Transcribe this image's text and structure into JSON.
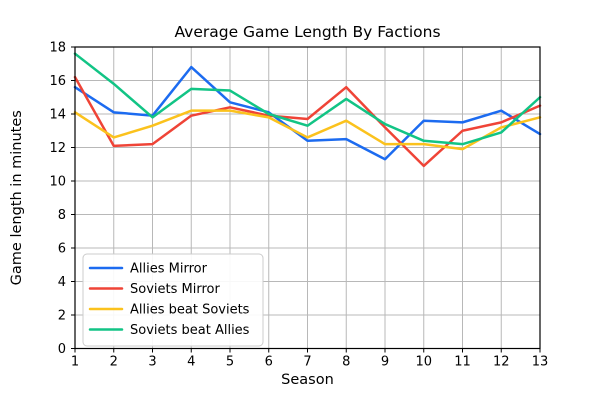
{
  "chart_data": {
    "type": "line",
    "title": "Average Game Length By Factions",
    "xlabel": "Season",
    "ylabel": "Game length in minutes",
    "x": [
      1,
      2,
      3,
      4,
      5,
      6,
      7,
      8,
      9,
      10,
      11,
      12,
      13
    ],
    "xlim": [
      1,
      13
    ],
    "ylim": [
      0,
      18
    ],
    "ytick_step": 2,
    "grid": true,
    "grid_color": "#b8b8b8",
    "legend_position": "lower left",
    "series": [
      {
        "name": "Allies Mirror",
        "color": "#1c6bf0",
        "values": [
          15.6,
          14.1,
          13.9,
          16.8,
          14.7,
          14.1,
          12.4,
          12.5,
          11.3,
          13.6,
          13.5,
          14.2,
          12.8
        ]
      },
      {
        "name": "Soviets Mirror",
        "color": "#ef4437",
        "values": [
          16.2,
          12.1,
          12.2,
          13.9,
          14.4,
          13.9,
          13.7,
          15.6,
          13.2,
          10.9,
          13.0,
          13.5,
          14.5
        ]
      },
      {
        "name": "Allies beat Soviets",
        "color": "#fbc21d",
        "values": [
          14.1,
          12.6,
          13.3,
          14.2,
          14.2,
          13.8,
          12.6,
          13.6,
          12.2,
          12.2,
          11.9,
          13.2,
          13.8
        ]
      },
      {
        "name": "Soviets beat Allies",
        "color": "#12c485",
        "values": [
          17.6,
          15.8,
          13.8,
          15.5,
          15.4,
          14.0,
          13.3,
          14.9,
          13.4,
          12.4,
          12.2,
          12.9,
          15.0
        ]
      }
    ]
  }
}
